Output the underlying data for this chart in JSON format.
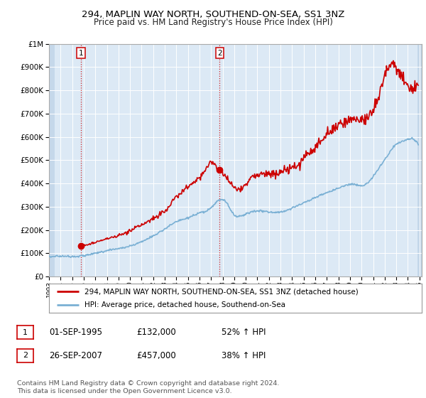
{
  "title": "294, MAPLIN WAY NORTH, SOUTHEND-ON-SEA, SS1 3NZ",
  "subtitle": "Price paid vs. HM Land Registry's House Price Index (HPI)",
  "background_color": "#ffffff",
  "plot_bg_color": "#dce9f5",
  "hatch_color": "#c5d8ea",
  "grid_color": "#ffffff",
  "sale1_date": 1995.75,
  "sale1_price": 132000,
  "sale2_date": 2007.75,
  "sale2_price": 457000,
  "hpi_line_color": "#7ab0d4",
  "price_line_color": "#cc0000",
  "ylim_max": 1000000,
  "ylim_min": 0,
  "legend_line1": "294, MAPLIN WAY NORTH, SOUTHEND-ON-SEA, SS1 3NZ (detached house)",
  "legend_line2": "HPI: Average price, detached house, Southend-on-Sea",
  "ann1_date": "01-SEP-1995",
  "ann1_price": "£132,000",
  "ann1_hpi": "52% ↑ HPI",
  "ann2_date": "26-SEP-2007",
  "ann2_price": "£457,000",
  "ann2_hpi": "38% ↑ HPI",
  "footer_line1": "Contains HM Land Registry data © Crown copyright and database right 2024.",
  "footer_line2": "This data is licensed under the Open Government Licence v3.0."
}
